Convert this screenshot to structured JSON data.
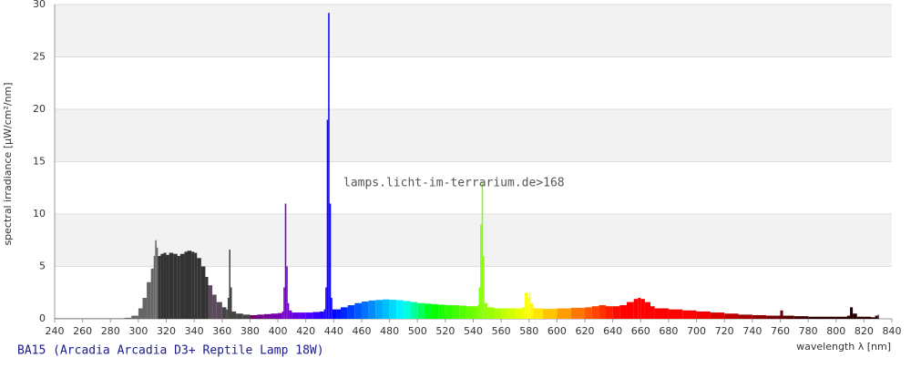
{
  "chart_data": {
    "type": "spectrum",
    "watermark": "lamps.licht-im-terrarium.de>168",
    "footer": "BA15 (Arcadia Arcadia D3+ Reptile Lamp 18W)",
    "y_label": "spectral irradiance [µW/cm²/nm]",
    "x_label": "wavelength λ [nm]",
    "xlim": [
      240,
      840
    ],
    "ylim": [
      0,
      30
    ],
    "xticks": [
      240,
      260,
      280,
      300,
      320,
      340,
      360,
      380,
      400,
      420,
      440,
      460,
      480,
      500,
      520,
      540,
      560,
      580,
      600,
      620,
      640,
      660,
      680,
      700,
      720,
      740,
      760,
      780,
      800,
      820,
      840
    ],
    "yticks": [
      0,
      5,
      10,
      15,
      20,
      25,
      30
    ],
    "band_color": "#f2f2f2",
    "x": [
      240,
      250,
      260,
      270,
      280,
      290,
      295,
      300,
      303,
      306,
      309,
      311,
      312,
      313,
      314,
      316,
      318,
      320,
      322,
      325,
      328,
      330,
      333,
      335,
      338,
      340,
      342,
      345,
      348,
      350,
      353,
      356,
      360,
      363,
      364,
      365,
      366,
      367,
      370,
      375,
      380,
      385,
      390,
      395,
      400,
      403,
      404,
      405,
      406,
      407,
      408,
      410,
      415,
      420,
      425,
      430,
      433,
      434,
      435,
      436,
      437,
      438,
      439,
      442,
      445,
      450,
      455,
      460,
      465,
      470,
      475,
      480,
      485,
      490,
      495,
      500,
      505,
      510,
      515,
      520,
      525,
      530,
      535,
      540,
      543,
      544,
      545,
      546,
      547,
      548,
      550,
      555,
      560,
      565,
      570,
      575,
      577,
      578,
      579,
      580,
      581,
      583,
      590,
      600,
      610,
      620,
      625,
      630,
      635,
      640,
      645,
      650,
      655,
      658,
      660,
      663,
      667,
      670,
      680,
      690,
      700,
      710,
      720,
      730,
      740,
      750,
      758,
      760,
      762,
      770,
      780,
      790,
      800,
      808,
      810,
      812,
      815,
      820,
      825,
      828,
      830
    ],
    "series": [
      {
        "name": "spectrum",
        "values": [
          0.05,
          0.05,
          0.05,
          0.05,
          0.05,
          0.1,
          0.3,
          1,
          2,
          3.5,
          4.8,
          6,
          7.5,
          6.8,
          6,
          6.2,
          6.3,
          6.1,
          6.3,
          6.2,
          6,
          6.2,
          6.4,
          6.5,
          6.4,
          6.3,
          5.8,
          5,
          4,
          3.2,
          2.3,
          1.6,
          1.1,
          0.9,
          2,
          6.6,
          3,
          0.7,
          0.5,
          0.4,
          0.35,
          0.4,
          0.45,
          0.5,
          0.55,
          0.7,
          3,
          11,
          5,
          1.5,
          0.8,
          0.6,
          0.6,
          0.6,
          0.65,
          0.7,
          0.9,
          3,
          19,
          29.2,
          11,
          2,
          0.9,
          0.9,
          1.1,
          1.3,
          1.5,
          1.65,
          1.75,
          1.8,
          1.85,
          1.82,
          1.78,
          1.7,
          1.6,
          1.5,
          1.45,
          1.4,
          1.35,
          1.3,
          1.3,
          1.25,
          1.2,
          1.2,
          1.3,
          3,
          9,
          13,
          6,
          1.5,
          1.1,
          1,
          1,
          1,
          1,
          1.1,
          2.5,
          2.5,
          2,
          2.5,
          1.5,
          1,
          0.95,
          1,
          1.05,
          1.1,
          1.2,
          1.3,
          1.2,
          1.2,
          1.3,
          1.6,
          1.9,
          2,
          1.9,
          1.6,
          1.2,
          1,
          0.9,
          0.8,
          0.7,
          0.6,
          0.5,
          0.4,
          0.35,
          0.3,
          0.3,
          0.8,
          0.3,
          0.25,
          0.2,
          0.2,
          0.2,
          0.3,
          1.1,
          0.5,
          0.2,
          0.2,
          0.15,
          0.3,
          0.4
        ]
      }
    ]
  }
}
